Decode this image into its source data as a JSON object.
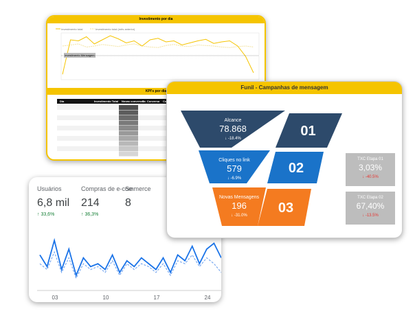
{
  "investment_chart": {
    "title": "Investimento por dia",
    "legend": [
      "Investimento total",
      "Investimento total (mês anterior)"
    ],
    "annotation": "Investimento Mensagem",
    "series": [
      {
        "name": "Investimento total",
        "color": "#f5c400",
        "values": [
          5,
          72,
          70,
          78,
          64,
          72,
          80,
          74,
          66,
          70,
          60,
          72,
          75,
          68,
          70,
          62,
          66,
          70,
          73,
          65,
          68,
          70,
          60,
          40,
          8
        ]
      },
      {
        "name": "Investimento total (mês anterior)",
        "color": "#f3e3a0",
        "values": [
          60,
          62,
          64,
          58,
          60,
          63,
          61,
          59,
          62,
          64,
          60,
          58,
          57,
          61,
          63,
          60,
          59,
          62,
          61,
          60,
          58,
          57,
          59,
          60,
          58
        ]
      }
    ]
  },
  "kpi_table": {
    "title": "KPI's por dia",
    "columns": [
      "Dia",
      "Investimento Total",
      "Novas conversas",
      "Tx. Conversa",
      "Custo p"
    ]
  },
  "funnel": {
    "title": "Funil - Campanhas de mensagem",
    "stages": [
      {
        "label": "Alcance",
        "value": "78.868",
        "change": "↓ -18.4%",
        "number": "01",
        "color": "#2d4a6b"
      },
      {
        "label": "Cliques no link",
        "value": "579",
        "change": "↓ -6.9%",
        "number": "02",
        "color": "#1a73c9"
      },
      {
        "label": "Novas Mensagens",
        "value": "196",
        "change": "↓ -31.0%",
        "number": "03",
        "color": "#f47b20"
      }
    ],
    "kpis": [
      {
        "label": "TXC Etapa 01",
        "value": "3,03%",
        "change": "↓ -40.5%"
      },
      {
        "label": "TXC Etapa 02",
        "value": "67,40%",
        "change": "↓ -13.5%"
      }
    ]
  },
  "analytics": {
    "metrics": [
      {
        "label": "Usuários",
        "value": "6,8 mil",
        "change": "↑ 33,6%"
      },
      {
        "label": "Compras de e-commerce",
        "value": "214",
        "change": "↑ 36,3%"
      },
      {
        "label": "Se",
        "value": "8",
        "change": ""
      }
    ],
    "x_labels": [
      "03",
      "10",
      "17",
      "24"
    ],
    "series": [
      {
        "color": "#1a73e8",
        "values": [
          55,
          35,
          80,
          30,
          65,
          20,
          50,
          35,
          40,
          30,
          55,
          25,
          45,
          35,
          50,
          40,
          30,
          50,
          25,
          55,
          45,
          70,
          40,
          65,
          75,
          50
        ]
      },
      {
        "color": "#7baaf0",
        "values": [
          40,
          30,
          60,
          25,
          50,
          15,
          40,
          30,
          35,
          25,
          45,
          20,
          40,
          30,
          40,
          35,
          25,
          40,
          20,
          45,
          40,
          55,
          35,
          50,
          40,
          25
        ]
      }
    ]
  }
}
